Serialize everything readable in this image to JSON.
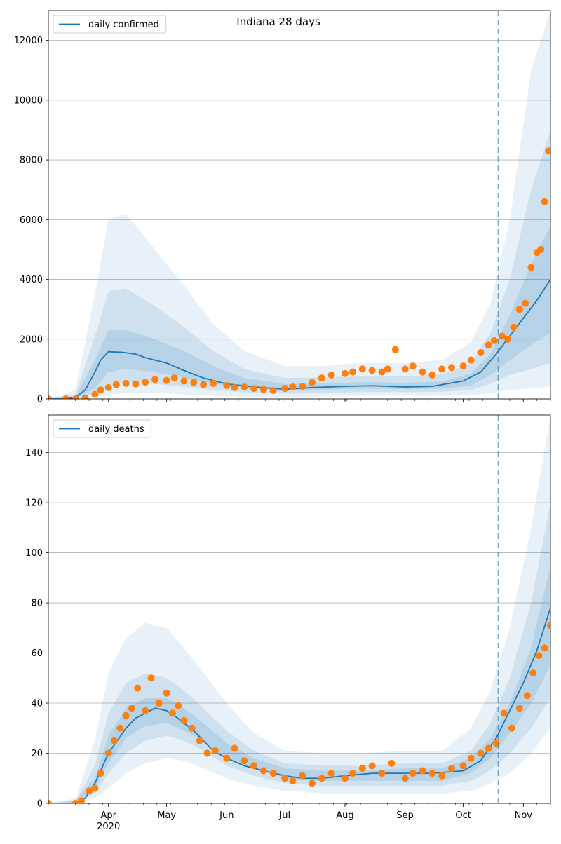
{
  "figure": {
    "title": "Indiana 28 days"
  },
  "colors": {
    "line": "#1f77b4",
    "points": "#ff7f0e",
    "band": "#1f77b4",
    "grid": "#b0b0b0",
    "forecast_line": "#1f77b4"
  },
  "chart_data": [
    {
      "type": "line",
      "title": "Indiana 28 days",
      "series": [
        {
          "name": "daily confirmed",
          "kind": "median-line",
          "x": [
            "2020-03-01",
            "2020-03-10",
            "2020-03-15",
            "2020-03-20",
            "2020-03-25",
            "2020-03-28",
            "2020-04-01",
            "2020-04-08",
            "2020-04-15",
            "2020-04-20",
            "2020-05-01",
            "2020-05-10",
            "2020-05-20",
            "2020-06-01",
            "2020-06-15",
            "2020-07-01",
            "2020-07-15",
            "2020-08-01",
            "2020-08-15",
            "2020-09-01",
            "2020-09-15",
            "2020-10-01",
            "2020-10-10",
            "2020-10-18",
            "2020-10-25",
            "2020-11-01",
            "2020-11-08",
            "2020-11-15"
          ],
          "values": [
            0,
            0,
            50,
            300,
            900,
            1300,
            1580,
            1560,
            1500,
            1380,
            1200,
            950,
            700,
            500,
            400,
            320,
            380,
            420,
            440,
            400,
            420,
            600,
            900,
            1500,
            2100,
            2700,
            3300,
            4000
          ]
        },
        {
          "name": "observed",
          "kind": "scatter",
          "x": [
            "2020-03-01",
            "2020-03-10",
            "2020-03-15",
            "2020-03-20",
            "2020-03-25",
            "2020-03-28",
            "2020-04-01",
            "2020-04-05",
            "2020-04-10",
            "2020-04-15",
            "2020-04-20",
            "2020-04-25",
            "2020-05-01",
            "2020-05-05",
            "2020-05-10",
            "2020-05-15",
            "2020-05-20",
            "2020-05-25",
            "2020-06-01",
            "2020-06-05",
            "2020-06-10",
            "2020-06-15",
            "2020-06-20",
            "2020-06-25",
            "2020-07-01",
            "2020-07-05",
            "2020-07-10",
            "2020-07-15",
            "2020-07-20",
            "2020-07-25",
            "2020-08-01",
            "2020-08-05",
            "2020-08-10",
            "2020-08-15",
            "2020-08-20",
            "2020-08-23",
            "2020-08-27",
            "2020-09-01",
            "2020-09-05",
            "2020-09-10",
            "2020-09-15",
            "2020-09-20",
            "2020-09-25",
            "2020-10-01",
            "2020-10-05",
            "2020-10-10",
            "2020-10-14",
            "2020-10-17",
            "2020-10-21",
            "2020-10-24",
            "2020-10-27",
            "2020-10-30",
            "2020-11-02",
            "2020-11-05",
            "2020-11-08",
            "2020-11-10",
            "2020-11-12",
            "2020-11-14"
          ],
          "values": [
            0,
            0,
            0,
            30,
            150,
            300,
            380,
            480,
            520,
            500,
            560,
            650,
            620,
            700,
            600,
            550,
            480,
            520,
            450,
            380,
            400,
            350,
            320,
            280,
            350,
            400,
            420,
            550,
            700,
            800,
            850,
            900,
            1000,
            950,
            900,
            1000,
            1650,
            1000,
            1100,
            900,
            800,
            1000,
            1050,
            1100,
            1300,
            1550,
            1800,
            1950,
            2100,
            2000,
            2400,
            3000,
            3200,
            4400,
            4900,
            5000,
            6600,
            8300
          ]
        }
      ],
      "bands": [
        {
          "name": "outer",
          "x": [
            "2020-03-01",
            "2020-03-15",
            "2020-03-25",
            "2020-04-01",
            "2020-04-10",
            "2020-04-25",
            "2020-05-10",
            "2020-05-25",
            "2020-06-10",
            "2020-07-01",
            "2020-07-20",
            "2020-08-10",
            "2020-09-01",
            "2020-09-20",
            "2020-10-05",
            "2020-10-15",
            "2020-10-25",
            "2020-11-05",
            "2020-11-15"
          ],
          "lower": [
            0,
            0,
            50,
            150,
            200,
            200,
            150,
            100,
            80,
            60,
            80,
            100,
            100,
            100,
            120,
            200,
            300,
            350,
            420
          ],
          "upper": [
            0,
            300,
            3500,
            6000,
            6200,
            5000,
            3800,
            2500,
            1600,
            1100,
            1100,
            1200,
            1200,
            1300,
            1900,
            3200,
            6000,
            11000,
            13000
          ]
        },
        {
          "name": "mid",
          "x": [
            "2020-03-01",
            "2020-03-15",
            "2020-03-25",
            "2020-04-01",
            "2020-04-10",
            "2020-04-25",
            "2020-05-10",
            "2020-05-25",
            "2020-06-10",
            "2020-07-01",
            "2020-07-20",
            "2020-08-10",
            "2020-09-01",
            "2020-09-20",
            "2020-10-05",
            "2020-10-15",
            "2020-10-25",
            "2020-11-05",
            "2020-11-15"
          ],
          "lower": [
            0,
            0,
            150,
            450,
            550,
            500,
            400,
            300,
            220,
            180,
            200,
            230,
            230,
            240,
            300,
            500,
            800,
            1000,
            1200
          ],
          "upper": [
            0,
            150,
            2100,
            3600,
            3700,
            3100,
            2400,
            1600,
            1000,
            700,
            720,
            760,
            760,
            820,
            1200,
            2200,
            4000,
            7000,
            9000
          ]
        },
        {
          "name": "inner",
          "x": [
            "2020-03-01",
            "2020-03-15",
            "2020-03-25",
            "2020-04-01",
            "2020-04-10",
            "2020-04-25",
            "2020-05-10",
            "2020-05-25",
            "2020-06-10",
            "2020-07-01",
            "2020-07-20",
            "2020-08-10",
            "2020-09-01",
            "2020-09-20",
            "2020-10-05",
            "2020-10-15",
            "2020-10-25",
            "2020-11-05",
            "2020-11-15"
          ],
          "lower": [
            0,
            0,
            350,
            900,
            1000,
            900,
            700,
            500,
            380,
            300,
            310,
            340,
            330,
            340,
            450,
            800,
            1300,
            1800,
            2200
          ],
          "upper": [
            0,
            80,
            1300,
            2300,
            2300,
            2000,
            1600,
            1100,
            700,
            500,
            520,
            560,
            540,
            580,
            850,
            1500,
            2800,
            4500,
            5800
          ]
        }
      ],
      "forecast_start": "2020-10-19",
      "legend": {
        "entries": [
          "daily confirmed"
        ],
        "position": "top-left"
      },
      "xlim": [
        "2020-03-01",
        "2020-11-15"
      ],
      "ylim": [
        0,
        13000
      ],
      "yticks": [
        0,
        2000,
        4000,
        6000,
        8000,
        10000,
        12000
      ],
      "grid": "horizontal"
    },
    {
      "type": "line",
      "series": [
        {
          "name": "daily deaths",
          "kind": "median-line",
          "x": [
            "2020-03-01",
            "2020-03-15",
            "2020-03-20",
            "2020-03-25",
            "2020-04-01",
            "2020-04-10",
            "2020-04-15",
            "2020-04-20",
            "2020-04-25",
            "2020-05-01",
            "2020-05-05",
            "2020-05-10",
            "2020-05-15",
            "2020-05-20",
            "2020-05-25",
            "2020-06-01",
            "2020-06-10",
            "2020-06-20",
            "2020-07-01",
            "2020-07-10",
            "2020-07-20",
            "2020-08-01",
            "2020-08-15",
            "2020-09-01",
            "2020-09-15",
            "2020-10-01",
            "2020-10-10",
            "2020-10-18",
            "2020-10-25",
            "2020-11-01",
            "2020-11-08",
            "2020-11-15"
          ],
          "values": [
            0,
            0,
            2,
            8,
            20,
            30,
            34,
            36,
            38,
            37,
            35,
            32,
            29,
            25,
            21,
            18,
            15,
            13,
            11,
            10,
            10,
            11,
            12,
            12,
            12,
            13,
            17,
            26,
            37,
            48,
            61,
            78
          ]
        },
        {
          "name": "observed",
          "kind": "scatter",
          "x": [
            "2020-03-01",
            "2020-03-15",
            "2020-03-18",
            "2020-03-22",
            "2020-03-25",
            "2020-03-28",
            "2020-04-01",
            "2020-04-04",
            "2020-04-07",
            "2020-04-10",
            "2020-04-13",
            "2020-04-16",
            "2020-04-20",
            "2020-04-23",
            "2020-04-27",
            "2020-05-01",
            "2020-05-04",
            "2020-05-07",
            "2020-05-10",
            "2020-05-14",
            "2020-05-18",
            "2020-05-22",
            "2020-05-26",
            "2020-06-01",
            "2020-06-05",
            "2020-06-10",
            "2020-06-15",
            "2020-06-20",
            "2020-06-25",
            "2020-07-01",
            "2020-07-05",
            "2020-07-10",
            "2020-07-15",
            "2020-07-20",
            "2020-07-25",
            "2020-08-01",
            "2020-08-05",
            "2020-08-10",
            "2020-08-15",
            "2020-08-20",
            "2020-08-25",
            "2020-09-01",
            "2020-09-05",
            "2020-09-10",
            "2020-09-15",
            "2020-09-20",
            "2020-09-25",
            "2020-10-01",
            "2020-10-05",
            "2020-10-10",
            "2020-10-14",
            "2020-10-18",
            "2020-10-22",
            "2020-10-26",
            "2020-10-30",
            "2020-11-03",
            "2020-11-06",
            "2020-11-09",
            "2020-11-12",
            "2020-11-15"
          ],
          "values": [
            0,
            0,
            1,
            5,
            6,
            12,
            20,
            25,
            30,
            35,
            38,
            46,
            37,
            50,
            40,
            44,
            36,
            39,
            33,
            30,
            25,
            20,
            21,
            18,
            22,
            17,
            15,
            13,
            12,
            10,
            9,
            11,
            8,
            10,
            12,
            10,
            12,
            14,
            15,
            12,
            16,
            10,
            12,
            13,
            12,
            11,
            14,
            15,
            18,
            20,
            22,
            24,
            36,
            30,
            38,
            43,
            52,
            59,
            62,
            71
          ]
        }
      ],
      "bands": [
        {
          "name": "outer",
          "x": [
            "2020-03-01",
            "2020-03-15",
            "2020-03-25",
            "2020-04-01",
            "2020-04-10",
            "2020-04-20",
            "2020-05-01",
            "2020-05-10",
            "2020-05-20",
            "2020-06-01",
            "2020-06-15",
            "2020-07-01",
            "2020-07-20",
            "2020-08-10",
            "2020-09-01",
            "2020-09-20",
            "2020-10-05",
            "2020-10-15",
            "2020-10-25",
            "2020-11-05",
            "2020-11-15"
          ],
          "lower": [
            0,
            0,
            2,
            6,
            12,
            16,
            18,
            17,
            14,
            10,
            7,
            5,
            4,
            4,
            4,
            4,
            5,
            8,
            12,
            20,
            30
          ],
          "upper": [
            0,
            2,
            25,
            52,
            66,
            72,
            70,
            62,
            52,
            40,
            28,
            21,
            20,
            20,
            21,
            21,
            30,
            45,
            70,
            110,
            155
          ]
        },
        {
          "name": "mid",
          "x": [
            "2020-03-01",
            "2020-03-15",
            "2020-03-25",
            "2020-04-01",
            "2020-04-10",
            "2020-04-20",
            "2020-05-01",
            "2020-05-10",
            "2020-05-20",
            "2020-06-01",
            "2020-06-15",
            "2020-07-01",
            "2020-07-20",
            "2020-08-10",
            "2020-09-01",
            "2020-09-20",
            "2020-10-05",
            "2020-10-15",
            "2020-10-25",
            "2020-11-05",
            "2020-11-15"
          ],
          "lower": [
            0,
            0,
            4,
            12,
            20,
            25,
            27,
            25,
            21,
            15,
            11,
            8,
            7,
            7,
            7,
            7,
            9,
            13,
            20,
            30,
            42
          ],
          "upper": [
            0,
            1,
            15,
            36,
            48,
            52,
            50,
            45,
            38,
            29,
            21,
            16,
            15,
            15,
            16,
            16,
            21,
            32,
            50,
            80,
            120
          ]
        },
        {
          "name": "inner",
          "x": [
            "2020-03-01",
            "2020-03-15",
            "2020-03-25",
            "2020-04-01",
            "2020-04-10",
            "2020-04-20",
            "2020-05-01",
            "2020-05-10",
            "2020-05-20",
            "2020-06-01",
            "2020-06-15",
            "2020-07-01",
            "2020-07-20",
            "2020-08-10",
            "2020-09-01",
            "2020-09-20",
            "2020-10-05",
            "2020-10-15",
            "2020-10-25",
            "2020-11-05",
            "2020-11-15"
          ],
          "lower": [
            0,
            0,
            6,
            16,
            26,
            31,
            32,
            29,
            25,
            18,
            14,
            10,
            9,
            9,
            9,
            9,
            12,
            18,
            28,
            40,
            55
          ],
          "upper": [
            0,
            1,
            10,
            27,
            38,
            42,
            42,
            38,
            32,
            24,
            18,
            14,
            13,
            13,
            14,
            14,
            18,
            26,
            40,
            62,
            95
          ]
        }
      ],
      "forecast_start": "2020-10-19",
      "legend": {
        "entries": [
          "daily deaths"
        ],
        "position": "top-left"
      },
      "xlim": [
        "2020-03-01",
        "2020-11-15"
      ],
      "ylim": [
        0,
        155
      ],
      "yticks": [
        0,
        20,
        40,
        60,
        80,
        100,
        120,
        140
      ],
      "xtick_labels": [
        "Apr\n2020",
        "May",
        "Jun",
        "Jul",
        "Aug",
        "Sep",
        "Oct",
        "Nov"
      ],
      "xtick_dates": [
        "2020-04-01",
        "2020-05-01",
        "2020-06-01",
        "2020-07-01",
        "2020-08-01",
        "2020-09-01",
        "2020-10-01",
        "2020-11-01"
      ],
      "grid": "horizontal"
    }
  ]
}
